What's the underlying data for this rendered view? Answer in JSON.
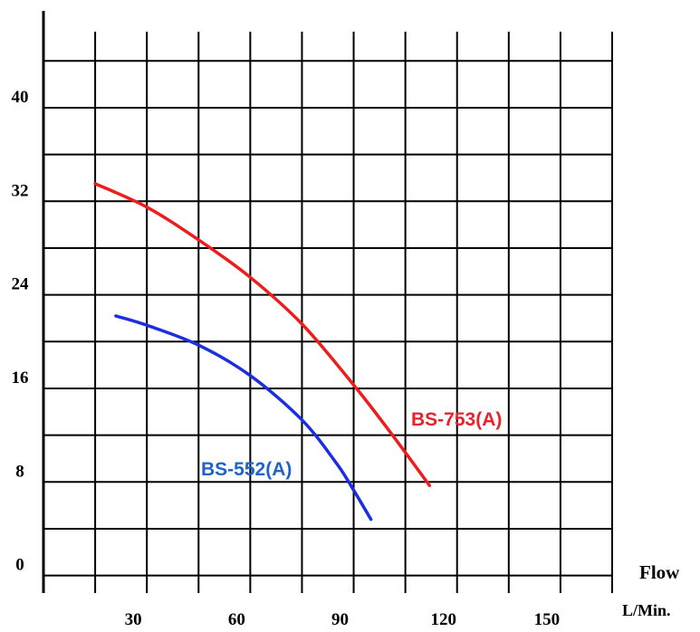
{
  "chart_data": {
    "type": "line",
    "title": "",
    "xlabel": "Flow",
    "xunit": "L/Min.",
    "ylabel": "",
    "xlim": [
      0,
      165
    ],
    "ylim": [
      -2.5,
      45.5
    ],
    "x_ticks": [
      30,
      60,
      90,
      120,
      150
    ],
    "y_ticks": [
      0,
      8,
      16,
      24,
      32,
      40
    ],
    "grid": true,
    "series": [
      {
        "name": "BS-753(A)",
        "color": "#ee1c1c",
        "x": [
          15,
          30,
          45,
          60,
          75,
          90,
          100,
          112
        ],
        "y": [
          32.5,
          30.5,
          27.7,
          24.5,
          20.5,
          15.3,
          11.5,
          6.7
        ]
      },
      {
        "name": "BS-552(A)",
        "color": "#1b2ee0",
        "x": [
          21,
          30,
          45,
          60,
          75,
          85,
          90,
          95
        ],
        "y": [
          21.2,
          20.4,
          18.7,
          16.1,
          12.3,
          8.6,
          6.3,
          3.8
        ]
      }
    ]
  }
}
